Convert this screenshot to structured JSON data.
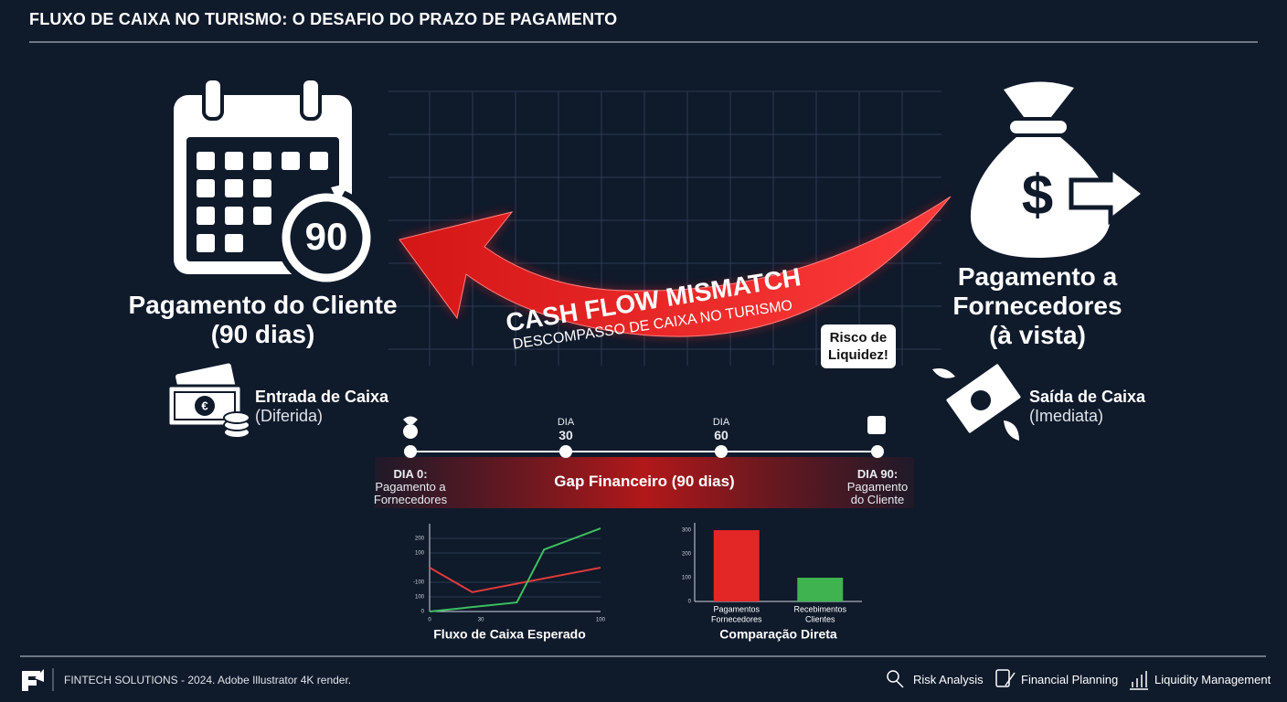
{
  "header": {
    "title": "FLUXO DE CAIXA NO TURISMO: O DESAFIO DO PRAZO DE PAGAMENTO"
  },
  "left": {
    "badge": "90",
    "title_lines": [
      "Pagamento do Cliente",
      "(90 dias)"
    ],
    "flow_label": "Entrada de Caixa",
    "flow_note": "(Diferida)"
  },
  "right": {
    "title_lines": [
      "Pagamento a",
      "Fornecedores",
      "(à vista)"
    ],
    "flow_label": "Saída de Caixa",
    "flow_note": "(Imediata)"
  },
  "center": {
    "banner": "CASH FLOW MISMATCH",
    "banner_sub": "DESCOMPASSO DE CAIXA NO TURISMO",
    "callout_lines": [
      "Risco de",
      "Liquidez!"
    ]
  },
  "timeline": {
    "gap_label": "Gap Financeiro (90 dias)",
    "start_lines": [
      "DIA 0:",
      "Pagamento a",
      "Fornecedores"
    ],
    "mid1_lines": [
      "DIA",
      "30"
    ],
    "mid2_lines": [
      "DIA",
      "60"
    ],
    "end_lines": [
      "DIA 90:",
      "Pagamento",
      "do Cliente"
    ]
  },
  "chart_data": [
    {
      "type": "line",
      "title": "Fluxo de Caixa Esperado",
      "xlim": [
        0,
        100
      ],
      "xticks": [
        0,
        30,
        100
      ],
      "ylim": [
        0,
        300
      ],
      "yticks": [
        0,
        {
          "value": 50,
          "label": "100"
        },
        {
          "value": 100,
          "label": "-100"
        },
        {
          "value": 200,
          "label": "100"
        },
        {
          "value": 250,
          "label": "200"
        }
      ],
      "grid": true,
      "series": [
        {
          "color": "#e03a3a",
          "x": [
            0,
            25,
            100
          ],
          "values": [
            150,
            66,
            150
          ]
        },
        {
          "color": "#3fbf5f",
          "x": [
            0,
            51,
            67,
            100
          ],
          "values": [
            0,
            31,
            212,
            284
          ]
        }
      ]
    },
    {
      "type": "bar",
      "title": "Comparação Direta",
      "categories": [
        [
          "Pagamentos",
          "Fornecedores"
        ],
        [
          "Recebimentos",
          "Clientes"
        ]
      ],
      "values": [
        300,
        100
      ],
      "colors": [
        "#e32626",
        "#3fb34f"
      ],
      "ylim": [
        0,
        300
      ],
      "yticks": [
        0,
        100,
        200,
        300
      ]
    }
  ],
  "footer": {
    "credit": "FINTECH SOLUTIONS - 2024. Adobe Illustrator 4K render.",
    "links": [
      "Risk Analysis",
      "Financial Planning",
      "Liquidity Management"
    ]
  }
}
